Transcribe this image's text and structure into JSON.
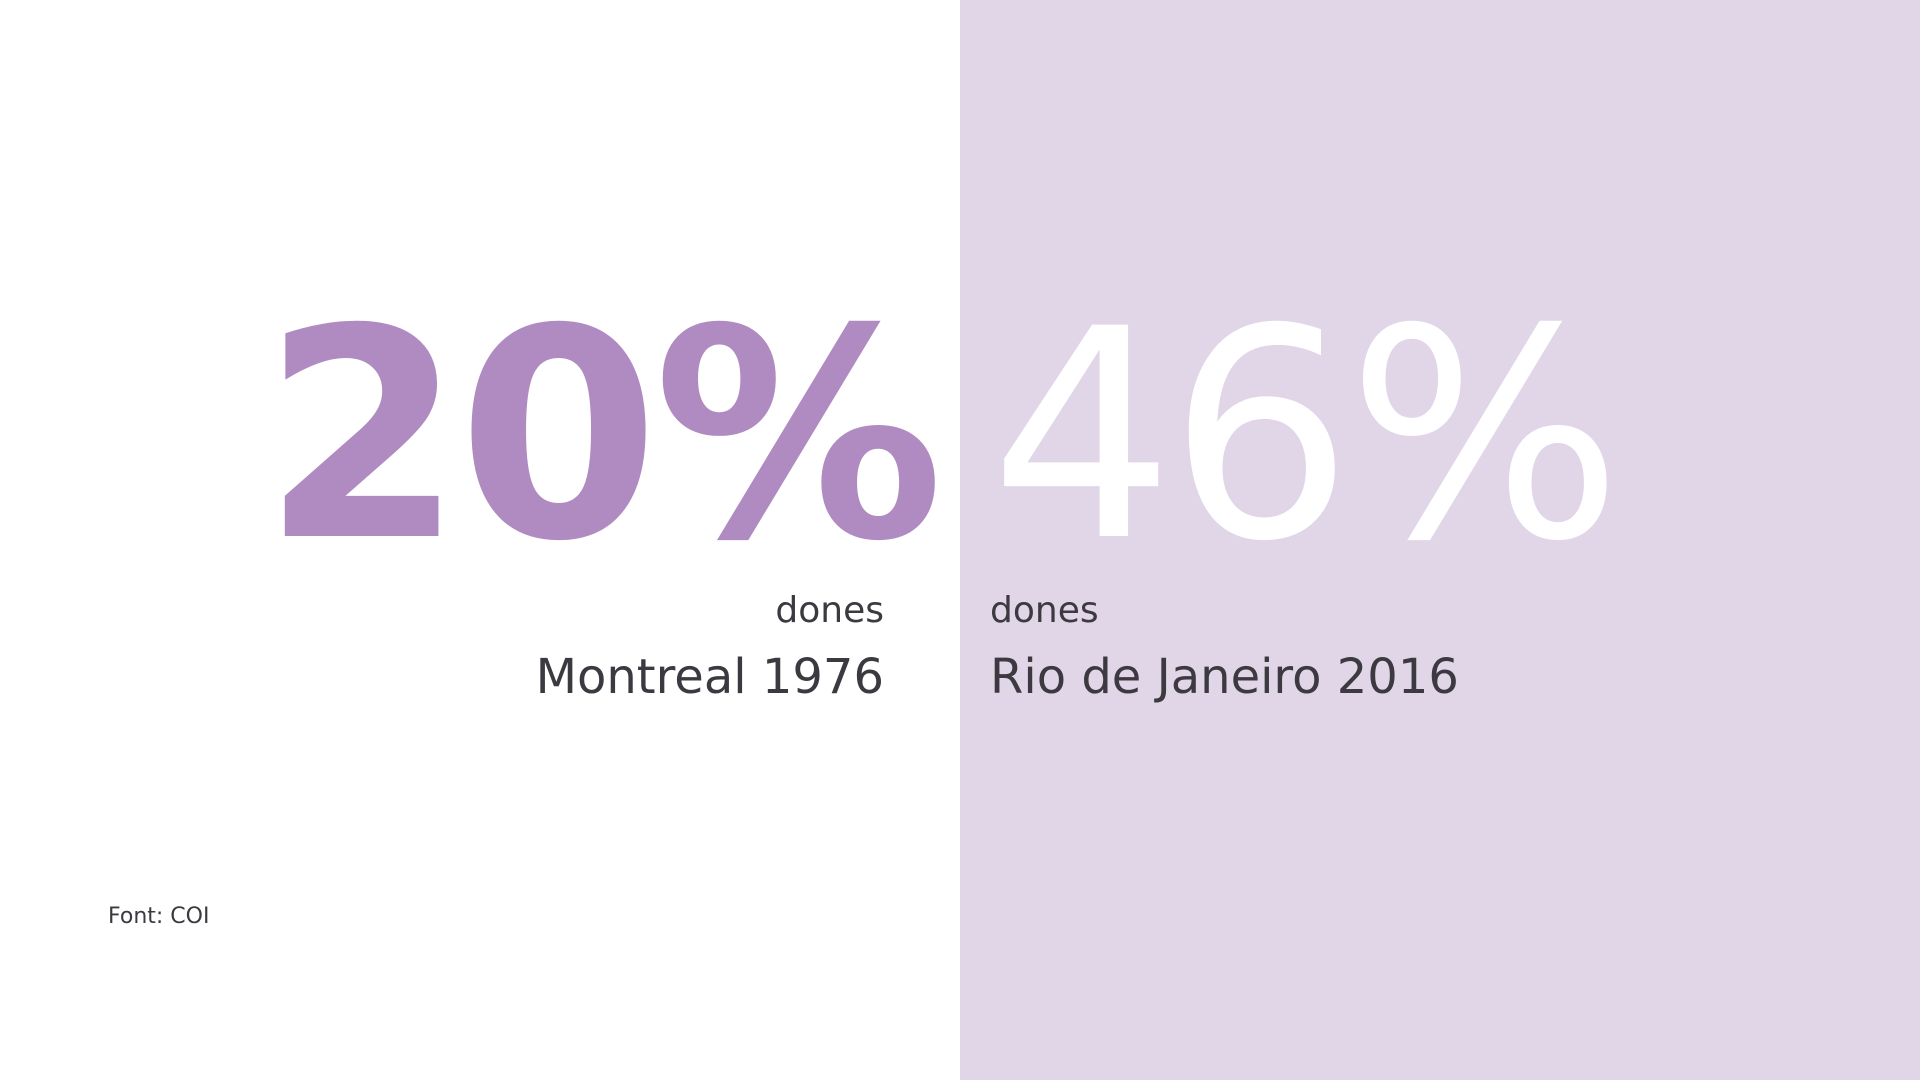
{
  "left": {
    "value": "20%",
    "label": "dones",
    "city": "Montreal 1976"
  },
  "right": {
    "value": "46%",
    "label": "dones",
    "city": "Rio de Janeiro 2016"
  },
  "source": "Font: COI",
  "colors": {
    "accent": "#b08bc1",
    "panel_background": "#e1d6e8",
    "right_number": "#ffffff",
    "text": "#3c3a40"
  }
}
